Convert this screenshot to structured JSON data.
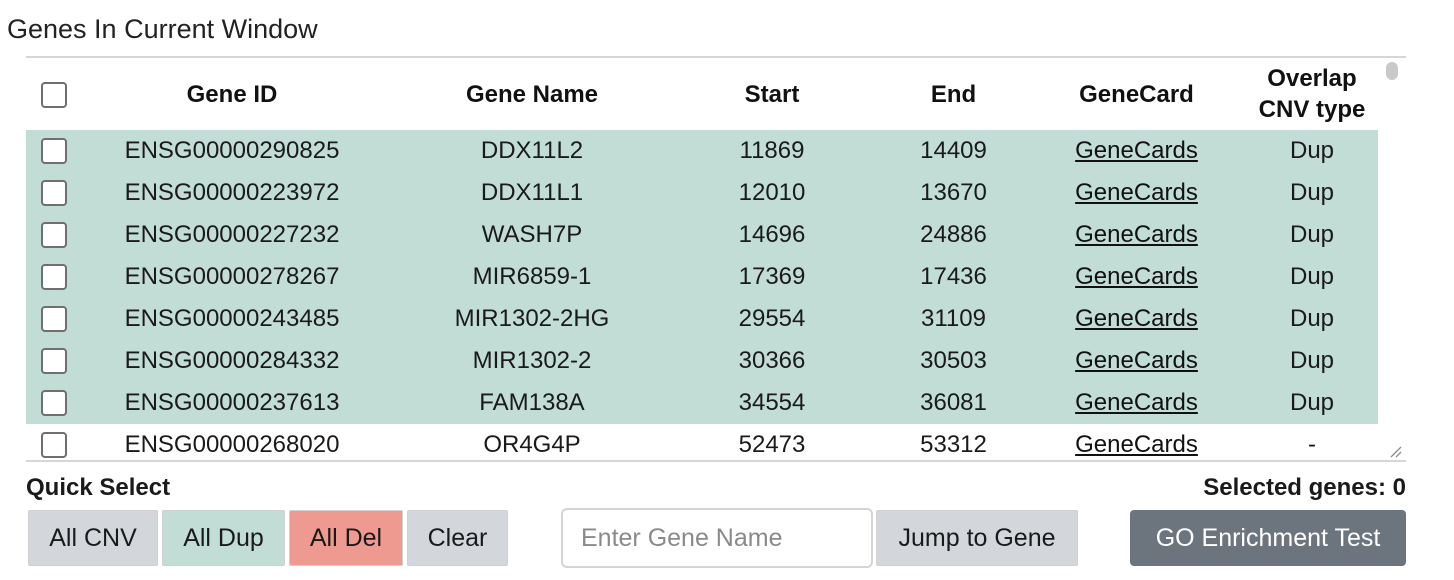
{
  "title": "Genes In Current Window",
  "table": {
    "headers": {
      "gene_id": "Gene ID",
      "gene_name": "Gene Name",
      "start": "Start",
      "end": "End",
      "genecard": "GeneCard",
      "overlap_line1": "Overlap",
      "overlap_line2": "CNV type"
    },
    "rows": [
      {
        "gene_id": "ENSG00000290825",
        "gene_name": "DDX11L2",
        "start": "11869",
        "end": "14409",
        "genecard": "GeneCards",
        "cnv": "Dup",
        "highlight": true
      },
      {
        "gene_id": "ENSG00000223972",
        "gene_name": "DDX11L1",
        "start": "12010",
        "end": "13670",
        "genecard": "GeneCards",
        "cnv": "Dup",
        "highlight": true
      },
      {
        "gene_id": "ENSG00000227232",
        "gene_name": "WASH7P",
        "start": "14696",
        "end": "24886",
        "genecard": "GeneCards",
        "cnv": "Dup",
        "highlight": true
      },
      {
        "gene_id": "ENSG00000278267",
        "gene_name": "MIR6859-1",
        "start": "17369",
        "end": "17436",
        "genecard": "GeneCards",
        "cnv": "Dup",
        "highlight": true
      },
      {
        "gene_id": "ENSG00000243485",
        "gene_name": "MIR1302-2HG",
        "start": "29554",
        "end": "31109",
        "genecard": "GeneCards",
        "cnv": "Dup",
        "highlight": true
      },
      {
        "gene_id": "ENSG00000284332",
        "gene_name": "MIR1302-2",
        "start": "30366",
        "end": "30503",
        "genecard": "GeneCards",
        "cnv": "Dup",
        "highlight": true
      },
      {
        "gene_id": "ENSG00000237613",
        "gene_name": "FAM138A",
        "start": "34554",
        "end": "36081",
        "genecard": "GeneCards",
        "cnv": "Dup",
        "highlight": true
      },
      {
        "gene_id": "ENSG00000268020",
        "gene_name": "OR4G4P",
        "start": "52473",
        "end": "53312",
        "genecard": "GeneCards",
        "cnv": "-",
        "highlight": false
      }
    ]
  },
  "quick_select": {
    "label": "Quick Select",
    "all_cnv": "All CNV",
    "all_dup": "All Dup",
    "all_del": "All Del",
    "clear": "Clear"
  },
  "search": {
    "placeholder": "Enter Gene Name",
    "value": "",
    "jump_label": "Jump to Gene"
  },
  "selected_genes": "Selected genes: 0",
  "go_button": "GO Enrichment Test",
  "colors": {
    "dup_highlight": "#c2ddd5",
    "del_button": "#ef9a91",
    "gray_button": "#d3d7db",
    "dark_button": "#6c757d"
  }
}
